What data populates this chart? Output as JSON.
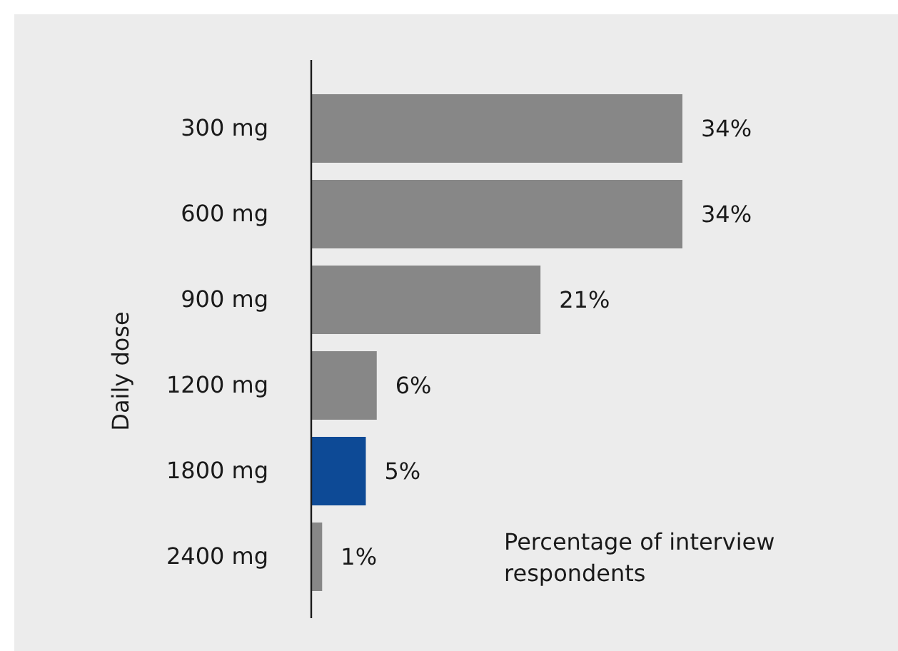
{
  "chart_data": {
    "type": "bar",
    "orientation": "horizontal",
    "ylabel": "Daily dose",
    "xlabel": "Percentage of interview respondents",
    "categories": [
      "300 mg",
      "600 mg",
      "900 mg",
      "1200 mg",
      "1800 mg",
      "2400 mg"
    ],
    "values": [
      34,
      34,
      21,
      6,
      5,
      1
    ],
    "colors": [
      "#878787",
      "#878787",
      "#878787",
      "#878787",
      "#0d4a96",
      "#878787"
    ],
    "value_labels": [
      "34%",
      "34%",
      "21%",
      "6%",
      "5%",
      "1%"
    ]
  }
}
